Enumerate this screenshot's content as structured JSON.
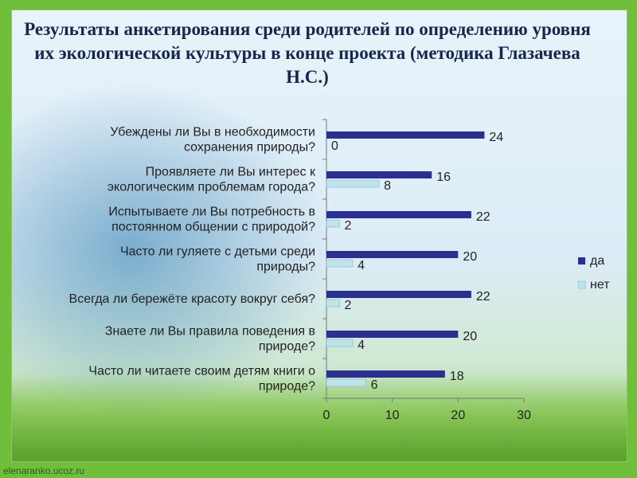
{
  "title": "Результаты анкетирования среди родителей по определению уровня их экологической культуры в конце проекта (методика Глазачева Н.С.)",
  "footer": "elenaranko.ucoz.ru",
  "colors": {
    "series_da": "#2b2f8f",
    "series_net": "#bfe3ec",
    "series_net_border": "#7fb8cf"
  },
  "chart_data": {
    "type": "bar",
    "orientation": "horizontal",
    "categories": [
      [
        "Убеждены ли Вы в необходимости",
        "сохранения природы?"
      ],
      [
        "Проявляете ли Вы интерес к",
        "экологическим проблемам города?"
      ],
      [
        "Испытываете ли Вы потребность в",
        "постоянном общении с природой?"
      ],
      [
        "Часто ли гуляете с детьми среди",
        "природы?"
      ],
      [
        "Всегда ли бережёте красоту вокруг себя?"
      ],
      [
        "Знаете ли Вы правила поведения в",
        "природе?"
      ],
      [
        "Часто ли читаете своим детям книги о",
        "природе?"
      ]
    ],
    "series": [
      {
        "name": "да",
        "values": [
          24,
          16,
          22,
          20,
          22,
          20,
          18
        ]
      },
      {
        "name": "нет",
        "values": [
          0,
          8,
          2,
          4,
          2,
          4,
          6
        ]
      }
    ],
    "xlim": [
      0,
      30
    ],
    "xticks": [
      0,
      10,
      20,
      30
    ],
    "grid": false,
    "legend": "right",
    "data_labels": true
  }
}
